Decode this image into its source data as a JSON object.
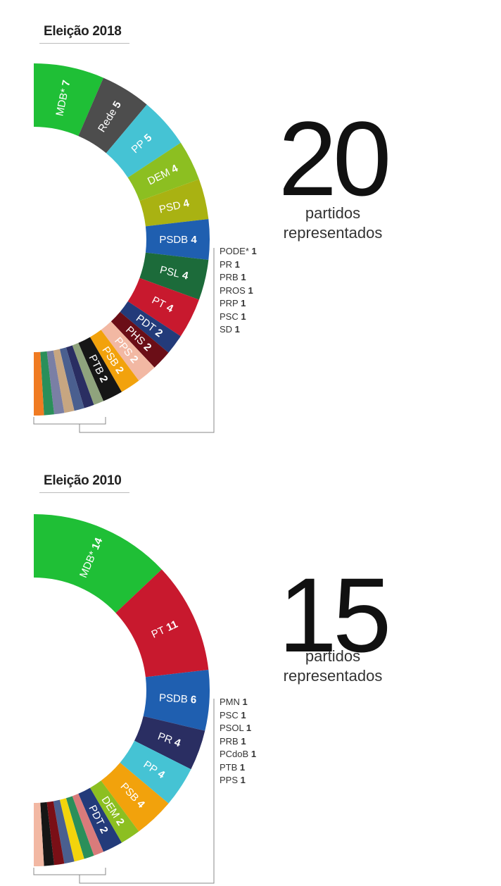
{
  "chart_data": [
    {
      "type": "donut",
      "title": "Eleição 2018",
      "total_label_number": "20",
      "total_label_text": [
        "partidos",
        "representados"
      ],
      "series": [
        {
          "name": "MDB*",
          "value": 7,
          "color": "#1fbf36",
          "text": "#ffffff"
        },
        {
          "name": "Rede",
          "value": 5,
          "color": "#4d4d4d",
          "text": "#ffffff"
        },
        {
          "name": "PP",
          "value": 5,
          "color": "#45c3d4",
          "text": "#ffffff"
        },
        {
          "name": "DEM",
          "value": 4,
          "color": "#8cbf21",
          "text": "#ffffff"
        },
        {
          "name": "PSD",
          "value": 4,
          "color": "#a9b212",
          "text": "#ffffff"
        },
        {
          "name": "PSDB",
          "value": 4,
          "color": "#1f5fb0",
          "text": "#ffffff"
        },
        {
          "name": "PSL",
          "value": 4,
          "color": "#1c6b3a",
          "text": "#ffffff"
        },
        {
          "name": "PT",
          "value": 4,
          "color": "#c8192e",
          "text": "#ffffff"
        },
        {
          "name": "PDT",
          "value": 2,
          "color": "#233b7a",
          "text": "#ffffff"
        },
        {
          "name": "PHS",
          "value": 2,
          "color": "#6b0e17",
          "text": "#ffffff"
        },
        {
          "name": "PPS",
          "value": 2,
          "color": "#f2b8a3",
          "text": "#ffffff"
        },
        {
          "name": "PSB",
          "value": 2,
          "color": "#f2a20c",
          "text": "#ffffff"
        },
        {
          "name": "PTB",
          "value": 2,
          "color": "#161616",
          "text": "#ffffff"
        },
        {
          "name": "PODE*",
          "value": 1,
          "color": "#8fa37d",
          "text": ""
        },
        {
          "name": "PR",
          "value": 1,
          "color": "#2a2e62",
          "text": ""
        },
        {
          "name": "PRB",
          "value": 1,
          "color": "#4a5f8f",
          "text": ""
        },
        {
          "name": "PROS",
          "value": 1,
          "color": "#c7a681",
          "text": ""
        },
        {
          "name": "PRP",
          "value": 1,
          "color": "#7a7fa5",
          "text": ""
        },
        {
          "name": "PSC",
          "value": 1,
          "color": "#2a8f5a",
          "text": ""
        },
        {
          "name": "SD",
          "value": 1,
          "color": "#f07b22",
          "text": ""
        }
      ],
      "small_parties": [
        {
          "name": "PODE*",
          "value": "1"
        },
        {
          "name": "PR",
          "value": "1"
        },
        {
          "name": "PRB",
          "value": "1"
        },
        {
          "name": "PROS",
          "value": "1"
        },
        {
          "name": "PRP",
          "value": "1"
        },
        {
          "name": "PSC",
          "value": "1"
        },
        {
          "name": "SD",
          "value": "1"
        }
      ]
    },
    {
      "type": "donut",
      "title": "Eleição 2010",
      "total_label_number": "15",
      "total_label_text": [
        "partidos",
        "representados"
      ],
      "series": [
        {
          "name": "MDB*",
          "value": 14,
          "color": "#1fbf36",
          "text": "#ffffff"
        },
        {
          "name": "PT",
          "value": 11,
          "color": "#c8192e",
          "text": "#ffffff"
        },
        {
          "name": "PSDB",
          "value": 6,
          "color": "#1f5fb0",
          "text": "#ffffff"
        },
        {
          "name": "PR",
          "value": 4,
          "color": "#2a2e62",
          "text": "#ffffff"
        },
        {
          "name": "PP",
          "value": 4,
          "color": "#45c3d4",
          "text": "#ffffff"
        },
        {
          "name": "PSB",
          "value": 4,
          "color": "#f2a20c",
          "text": "#ffffff"
        },
        {
          "name": "DEM",
          "value": 2,
          "color": "#8cbf21",
          "text": "#ffffff"
        },
        {
          "name": "PDT",
          "value": 2,
          "color": "#233b7a",
          "text": "#ffffff"
        },
        {
          "name": "PMN",
          "value": 1,
          "color": "#d97b7b",
          "text": ""
        },
        {
          "name": "PSC",
          "value": 1,
          "color": "#2a8f5a",
          "text": ""
        },
        {
          "name": "PSOL",
          "value": 1,
          "color": "#f2d40c",
          "text": ""
        },
        {
          "name": "PRB",
          "value": 1,
          "color": "#4a5f8f",
          "text": ""
        },
        {
          "name": "PCdoB",
          "value": 1,
          "color": "#7a0f16",
          "text": ""
        },
        {
          "name": "PTB",
          "value": 1,
          "color": "#161616",
          "text": ""
        },
        {
          "name": "PPS",
          "value": 1,
          "color": "#f2b8a3",
          "text": ""
        }
      ],
      "small_parties": [
        {
          "name": "PMN",
          "value": "1"
        },
        {
          "name": "PSC",
          "value": "1"
        },
        {
          "name": "PSOL",
          "value": "1"
        },
        {
          "name": "PRB",
          "value": "1"
        },
        {
          "name": "PCdoB",
          "value": "1"
        },
        {
          "name": "PTB",
          "value": "1"
        },
        {
          "name": "PPS",
          "value": "1"
        }
      ]
    }
  ]
}
